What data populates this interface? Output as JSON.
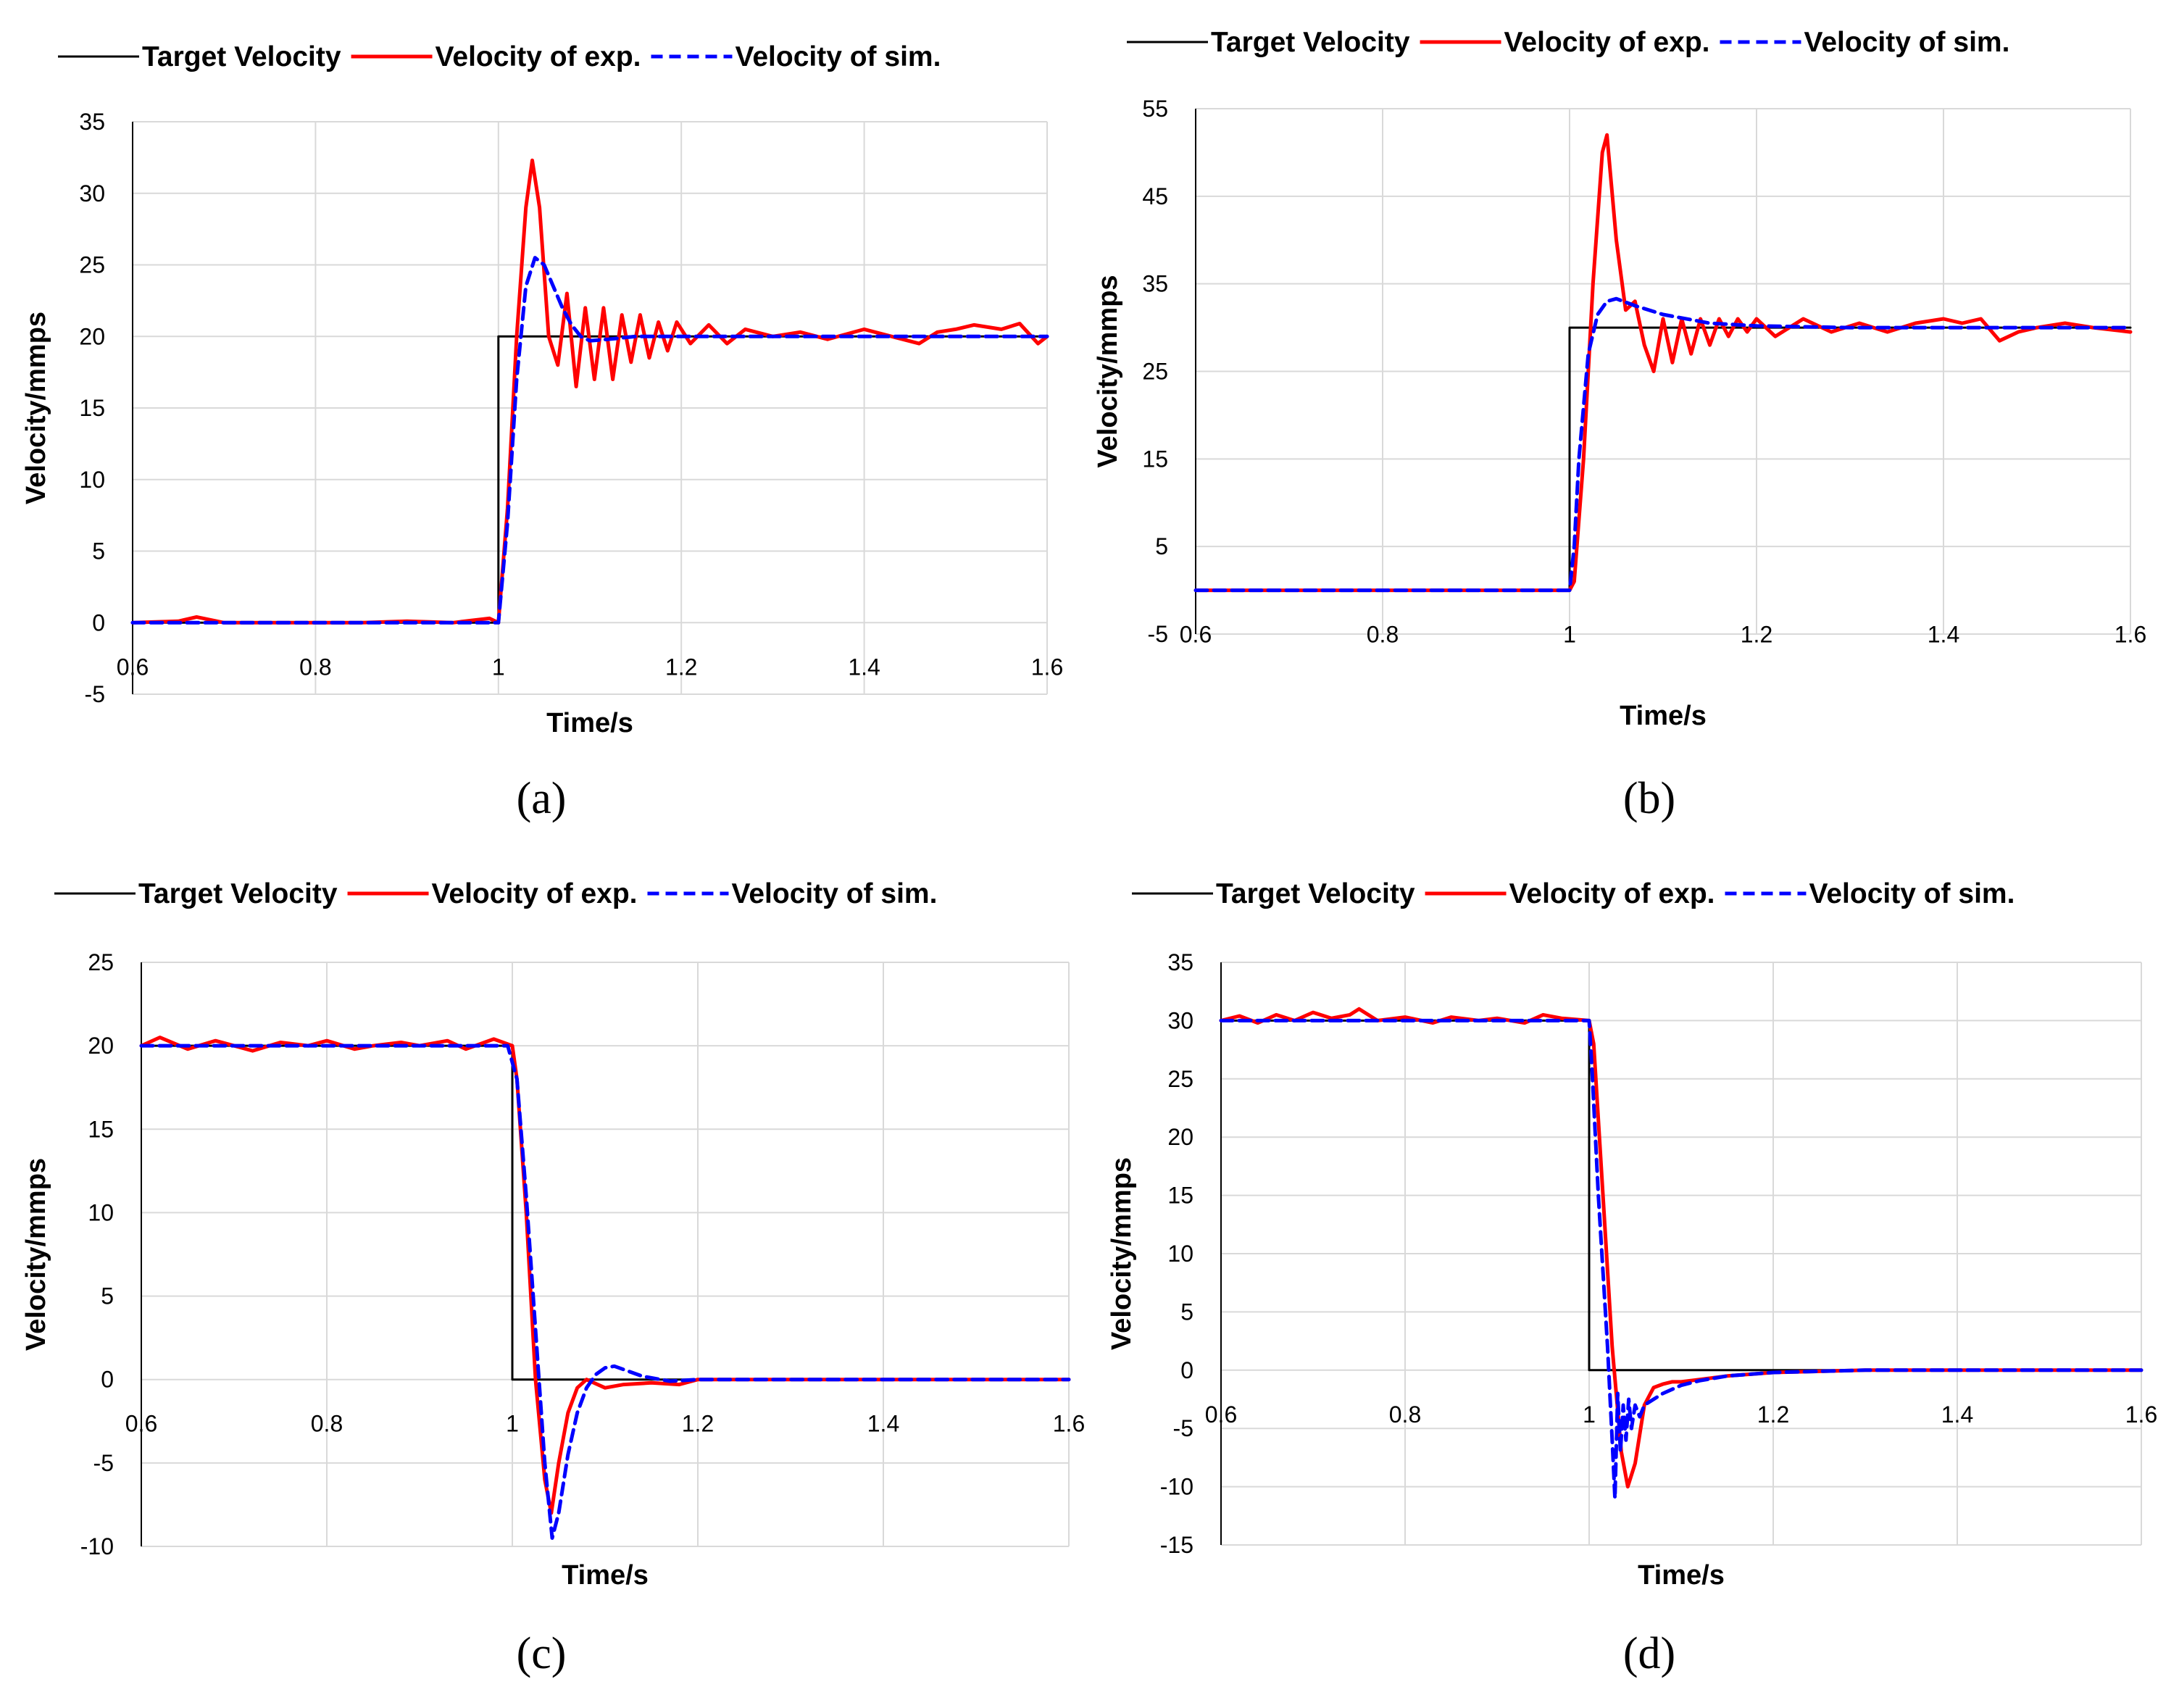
{
  "colors": {
    "target": "#000000",
    "experiment": "#ff0000",
    "simulation": "#0000ff",
    "grid": "#d9d9d9"
  },
  "chart_data": [
    {
      "id": "a",
      "type": "line",
      "caption": "(a)",
      "xlabel": "Time/s",
      "ylabel": "Velocity/mmps",
      "xlim": [
        0.6,
        1.6
      ],
      "ylim": [
        -5,
        35
      ],
      "xticks": [
        0.6,
        0.8,
        1,
        1.2,
        1.4,
        1.6
      ],
      "xtick_labels": [
        "0.6",
        "0.8",
        "1",
        "1.2",
        "1.4",
        "1.6"
      ],
      "yticks": [
        -5,
        0,
        5,
        10,
        15,
        20,
        25,
        30,
        35
      ],
      "ytick_labels": [
        "-5",
        "0",
        "5",
        "10",
        "15",
        "20",
        "25",
        "30",
        "35"
      ],
      "grid": true,
      "legend_position": "top",
      "series": [
        {
          "name": "Target Velocity",
          "style": "solid-thin",
          "x": [
            0.6,
            1.0,
            1.0,
            1.6
          ],
          "y": [
            0,
            0,
            20,
            20
          ]
        },
        {
          "name": "Velocity of exp.",
          "style": "solid",
          "x": [
            0.6,
            0.65,
            0.67,
            0.7,
            0.75,
            0.8,
            0.85,
            0.9,
            0.95,
            0.99,
            1.0,
            1.01,
            1.02,
            1.03,
            1.037,
            1.045,
            1.055,
            1.065,
            1.075,
            1.085,
            1.095,
            1.105,
            1.115,
            1.125,
            1.135,
            1.145,
            1.155,
            1.165,
            1.175,
            1.185,
            1.195,
            1.21,
            1.23,
            1.25,
            1.27,
            1.3,
            1.33,
            1.36,
            1.4,
            1.43,
            1.46,
            1.48,
            1.5,
            1.52,
            1.55,
            1.57,
            1.59,
            1.6
          ],
          "y": [
            0,
            0.1,
            0.4,
            0,
            0,
            0,
            0,
            0.1,
            0,
            0.3,
            0,
            8,
            20,
            29,
            32.3,
            29,
            20,
            18,
            23,
            16.5,
            22,
            17,
            22,
            17,
            21.5,
            18.2,
            21.5,
            18.5,
            21,
            19,
            21,
            19.5,
            20.8,
            19.5,
            20.5,
            20,
            20.3,
            19.8,
            20.5,
            20,
            19.5,
            20.3,
            20.5,
            20.8,
            20.5,
            20.9,
            19.5,
            20
          ]
        },
        {
          "name": "Velocity of sim.",
          "style": "dashed",
          "x": [
            0.6,
            0.7,
            0.8,
            0.9,
            1.0,
            1.01,
            1.02,
            1.03,
            1.04,
            1.05,
            1.06,
            1.07,
            1.08,
            1.09,
            1.1,
            1.12,
            1.15,
            1.2,
            1.3,
            1.4,
            1.5,
            1.6
          ],
          "y": [
            0,
            0,
            0,
            0,
            0,
            7,
            17,
            23.5,
            25.5,
            25,
            23.5,
            22,
            20.8,
            20,
            19.7,
            19.8,
            20,
            20,
            20,
            20,
            20,
            20
          ]
        }
      ]
    },
    {
      "id": "b",
      "type": "line",
      "caption": "(b)",
      "xlabel": "Time/s",
      "ylabel": "Velocity/mmps",
      "xlim": [
        0.6,
        1.6
      ],
      "ylim": [
        -5,
        55
      ],
      "xticks": [
        0.6,
        0.8,
        1,
        1.2,
        1.4,
        1.6
      ],
      "xtick_labels": [
        "0.6",
        "0.8",
        "1",
        "1.2",
        "1.4",
        "1.6"
      ],
      "yticks": [
        -5,
        5,
        15,
        25,
        35,
        45,
        55
      ],
      "ytick_labels": [
        "-5",
        "5",
        "15",
        "25",
        "35",
        "45",
        "55"
      ],
      "grid": true,
      "legend_position": "top",
      "series": [
        {
          "name": "Target Velocity",
          "style": "solid-thin",
          "x": [
            0.6,
            1.0,
            1.0,
            1.6
          ],
          "y": [
            0,
            0,
            30,
            30
          ]
        },
        {
          "name": "Velocity of exp.",
          "style": "solid",
          "x": [
            0.6,
            0.7,
            0.8,
            0.9,
            0.95,
            1.0,
            1.005,
            1.015,
            1.025,
            1.035,
            1.04,
            1.05,
            1.06,
            1.07,
            1.08,
            1.09,
            1.1,
            1.11,
            1.12,
            1.13,
            1.14,
            1.15,
            1.16,
            1.17,
            1.18,
            1.19,
            1.2,
            1.22,
            1.25,
            1.28,
            1.31,
            1.34,
            1.37,
            1.4,
            1.42,
            1.44,
            1.46,
            1.48,
            1.5,
            1.53,
            1.56,
            1.6
          ],
          "y": [
            0,
            0,
            0,
            0,
            0,
            0,
            1,
            15,
            35,
            50,
            52,
            40,
            32,
            33,
            28,
            25,
            31,
            26,
            31,
            27,
            31,
            28,
            31,
            29,
            31,
            29.5,
            31,
            29,
            31,
            29.5,
            30.5,
            29.5,
            30.5,
            31,
            30.5,
            31,
            28.5,
            29.5,
            30,
            30.5,
            30,
            29.5
          ]
        },
        {
          "name": "Velocity of sim.",
          "style": "dashed",
          "x": [
            0.6,
            0.8,
            1.0,
            1.005,
            1.01,
            1.02,
            1.03,
            1.04,
            1.05,
            1.07,
            1.1,
            1.15,
            1.2,
            1.3,
            1.4,
            1.5,
            1.6
          ],
          "y": [
            0,
            0,
            0,
            5,
            15,
            27,
            31.5,
            33,
            33.3,
            32.5,
            31.5,
            30.5,
            30.2,
            30,
            30,
            30,
            30
          ]
        }
      ]
    },
    {
      "id": "c",
      "type": "line",
      "caption": "(c)",
      "xlabel": "Time/s",
      "ylabel": "Velocity/mmps",
      "xlim": [
        0.6,
        1.6
      ],
      "ylim": [
        -10,
        25
      ],
      "xticks": [
        0.6,
        0.8,
        1,
        1.2,
        1.4,
        1.6
      ],
      "xtick_labels": [
        "0.6",
        "0.8",
        "1",
        "1.2",
        "1.4",
        "1.6"
      ],
      "yticks": [
        -10,
        -5,
        0,
        5,
        10,
        15,
        20,
        25
      ],
      "ytick_labels": [
        "-10",
        "-5",
        "0",
        "5",
        "10",
        "15",
        "20",
        "25"
      ],
      "grid": true,
      "legend_position": "top",
      "series": [
        {
          "name": "Target Velocity",
          "style": "solid-thin",
          "x": [
            0.6,
            1.0,
            1.0,
            1.6
          ],
          "y": [
            20,
            20,
            0,
            0
          ]
        },
        {
          "name": "Velocity of exp.",
          "style": "solid",
          "x": [
            0.6,
            0.62,
            0.65,
            0.68,
            0.7,
            0.72,
            0.75,
            0.78,
            0.8,
            0.83,
            0.85,
            0.88,
            0.9,
            0.93,
            0.95,
            0.98,
            1.0,
            1.005,
            1.015,
            1.025,
            1.035,
            1.042,
            1.05,
            1.06,
            1.07,
            1.08,
            1.1,
            1.12,
            1.15,
            1.18,
            1.2,
            1.25,
            1.3,
            1.4,
            1.5,
            1.6
          ],
          "y": [
            20,
            20.5,
            19.8,
            20.3,
            20,
            19.7,
            20.2,
            20,
            20.3,
            19.8,
            20,
            20.2,
            20,
            20.3,
            19.8,
            20.4,
            20,
            18,
            10,
            0,
            -6,
            -8,
            -5,
            -2,
            -0.5,
            0,
            -0.5,
            -0.3,
            -0.2,
            -0.3,
            0,
            0,
            0,
            0,
            0,
            0
          ]
        },
        {
          "name": "Velocity of sim.",
          "style": "dashed",
          "x": [
            0.6,
            0.7,
            0.8,
            0.9,
            0.995,
            1.005,
            1.015,
            1.025,
            1.035,
            1.043,
            1.05,
            1.06,
            1.07,
            1.08,
            1.09,
            1.1,
            1.11,
            1.12,
            1.14,
            1.17,
            1.2,
            1.3,
            1.6
          ],
          "y": [
            20,
            20,
            20,
            20,
            20,
            18,
            11,
            3,
            -5,
            -9.5,
            -8,
            -4.5,
            -2,
            -0.5,
            0.3,
            0.7,
            0.8,
            0.6,
            0.2,
            -0.1,
            0,
            0,
            0
          ]
        }
      ]
    },
    {
      "id": "d",
      "type": "line",
      "caption": "(d)",
      "xlabel": "Time/s",
      "ylabel": "Velocity/mmps",
      "xlim": [
        0.6,
        1.6
      ],
      "ylim": [
        -15,
        35
      ],
      "xticks": [
        0.6,
        0.8,
        1,
        1.2,
        1.4,
        1.6
      ],
      "xtick_labels": [
        "0.6",
        "0.8",
        "1",
        "1.2",
        "1.4",
        "1.6"
      ],
      "yticks": [
        -15,
        -10,
        -5,
        0,
        5,
        10,
        15,
        20,
        25,
        30,
        35
      ],
      "ytick_labels": [
        "-15",
        "-10",
        "-5",
        "0",
        "5",
        "10",
        "15",
        "20",
        "25",
        "30",
        "35"
      ],
      "grid": true,
      "legend_position": "top",
      "series": [
        {
          "name": "Target Velocity",
          "style": "solid-thin",
          "x": [
            0.6,
            1.0,
            1.0,
            1.6
          ],
          "y": [
            30,
            30,
            0,
            0
          ]
        },
        {
          "name": "Velocity of exp.",
          "style": "solid",
          "x": [
            0.6,
            0.62,
            0.64,
            0.66,
            0.68,
            0.7,
            0.72,
            0.74,
            0.75,
            0.77,
            0.8,
            0.83,
            0.85,
            0.88,
            0.9,
            0.93,
            0.95,
            0.97,
            1.0,
            1.005,
            1.015,
            1.025,
            1.035,
            1.042,
            1.05,
            1.06,
            1.07,
            1.08,
            1.09,
            1.1,
            1.12,
            1.15,
            1.2,
            1.3,
            1.4,
            1.5,
            1.6
          ],
          "y": [
            30,
            30.4,
            29.8,
            30.5,
            30,
            30.7,
            30.2,
            30.5,
            31,
            30,
            30.3,
            29.8,
            30.3,
            30,
            30.2,
            29.8,
            30.5,
            30.2,
            30,
            28,
            15,
            2,
            -7,
            -10,
            -8,
            -3,
            -1.5,
            -1.2,
            -1,
            -1,
            -0.8,
            -0.5,
            -0.2,
            0,
            0,
            0,
            0
          ]
        },
        {
          "name": "Velocity of sim.",
          "style": "dashed",
          "x": [
            0.6,
            0.7,
            0.8,
            0.9,
            1.0,
            1.003,
            1.01,
            1.02,
            1.025,
            1.028,
            1.031,
            1.034,
            1.037,
            1.04,
            1.043,
            1.046,
            1.05,
            1.055,
            1.06,
            1.07,
            1.08,
            1.1,
            1.12,
            1.15,
            1.2,
            1.3,
            1.4,
            1.5,
            1.6
          ],
          "y": [
            30,
            30,
            30,
            30,
            30,
            26,
            15,
            2,
            -6,
            -11,
            -2,
            -7,
            -3,
            -6,
            -2.5,
            -5,
            -3,
            -4,
            -3,
            -2.5,
            -2,
            -1.3,
            -0.9,
            -0.5,
            -0.2,
            0,
            0,
            0,
            0
          ]
        }
      ]
    }
  ]
}
